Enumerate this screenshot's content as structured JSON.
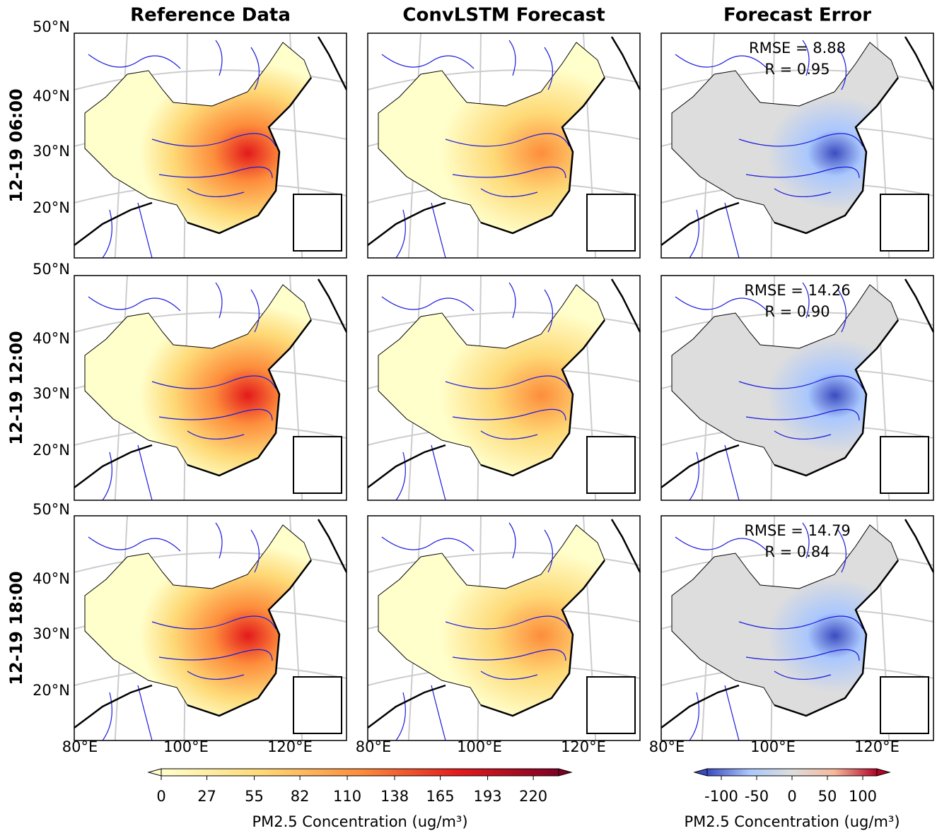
{
  "columns": [
    "Reference Data",
    "ConvLSTM Forecast",
    "Forecast Error"
  ],
  "rows": [
    "12-19 06:00",
    "12-19 12:00",
    "12-19 18:00"
  ],
  "lat_labels": [
    "50°N",
    "40°N",
    "30°N",
    "20°N"
  ],
  "lon_labels": [
    "80°E",
    "100°E",
    "120°E"
  ],
  "annotations": [
    {
      "rmse": "RMSE = 8.88",
      "r": "R = 0.95"
    },
    {
      "rmse": "RMSE = 14.26",
      "r": "R = 0.90"
    },
    {
      "rmse": "RMSE = 14.79",
      "r": "R = 0.84"
    }
  ],
  "colorbars": [
    {
      "label": "PM2.5 Concentration (ug/m³)",
      "lim": [
        0,
        235
      ],
      "ticks": [
        0,
        27,
        55,
        82,
        110,
        138,
        165,
        193,
        220
      ],
      "colors": [
        "#ffffcc",
        "#fed976",
        "#fd8d3c",
        "#e31a1c",
        "#800026"
      ]
    },
    {
      "label": "PM2.5 Concentration (ug/m³)",
      "lim": [
        -120,
        120
      ],
      "ticks": [
        -100,
        -50,
        0,
        50,
        100
      ],
      "colors": [
        "#3b4cc0",
        "#aac7fd",
        "#dddddd",
        "#f7b89c",
        "#b40426"
      ]
    }
  ]
}
